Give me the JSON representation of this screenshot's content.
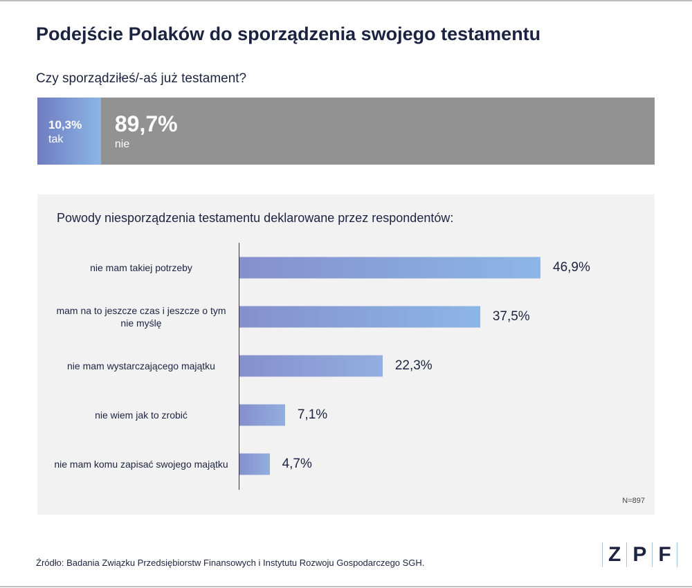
{
  "title": "Podejście Polaków do sporządzenia swojego testamentu",
  "question": "Czy sporządziłeś/-aś już testament?",
  "split": {
    "tak": {
      "value": "10,3%",
      "label": "tak",
      "pct": 10.3
    },
    "nie": {
      "value": "89,7%",
      "label": "nie",
      "pct": 89.7
    }
  },
  "colors": {
    "gradient_start": "#6f7cc0",
    "gradient_end": "#8cb6e6",
    "gray": "#929292",
    "text": "#1c2340"
  },
  "chart_data": {
    "type": "bar",
    "orientation": "horizontal",
    "title": "Powody niesporządzenia testamentu deklarowane przez respondentów:",
    "categories": [
      "nie mam takiej potrzeby",
      "mam na to jeszcze czas i jeszcze o tym nie myślę",
      "nie mam wystarczającego majątku",
      "nie wiem jak to zrobić",
      "nie mam komu zapisać swojego majątku"
    ],
    "values": [
      46.9,
      37.5,
      22.3,
      7.1,
      4.7
    ],
    "value_labels": [
      "46,9%",
      "37,5%",
      "22,3%",
      "7,1%",
      "4,7%"
    ],
    "xlim": [
      0,
      46.9
    ],
    "grid": false,
    "note": "N=897"
  },
  "source": "Źródło: Badania Związku Przedsiębiorstw Finansowych i Instytutu Rozwoju Gospodarczego SGH.",
  "logo": [
    "Z",
    "P",
    "F"
  ]
}
